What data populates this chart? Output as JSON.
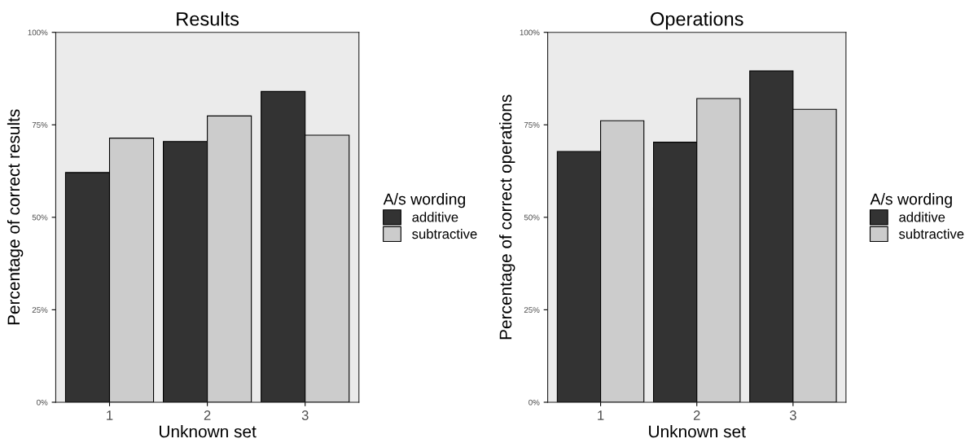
{
  "chart_data": [
    {
      "type": "bar",
      "title": "Results",
      "xlabel": "Unknown set",
      "ylabel": "Percentage of correct results",
      "legend_title": "A/s wording",
      "categories": [
        "1",
        "2",
        "3"
      ],
      "series": [
        {
          "name": "additive",
          "color": "#333333",
          "values": [
            62.1,
            70.5,
            84.0
          ]
        },
        {
          "name": "subtractive",
          "color": "#cccccc",
          "values": [
            71.4,
            77.4,
            72.2
          ]
        }
      ],
      "ylim": [
        0,
        100
      ],
      "yticks": [
        {
          "value": 0,
          "label": "0%"
        },
        {
          "value": 25,
          "label": "25%"
        },
        {
          "value": 50,
          "label": "50%"
        },
        {
          "value": 75,
          "label": "75%"
        },
        {
          "value": 100,
          "label": "100%"
        }
      ],
      "grid": false,
      "legend": "right"
    },
    {
      "type": "bar",
      "title": "Operations",
      "xlabel": "Unknown set",
      "ylabel": "Percentage of correct operations",
      "legend_title": "A/s wording",
      "categories": [
        "1",
        "2",
        "3"
      ],
      "series": [
        {
          "name": "additive",
          "color": "#333333",
          "values": [
            67.8,
            70.3,
            89.6
          ]
        },
        {
          "name": "subtractive",
          "color": "#cccccc",
          "values": [
            76.1,
            82.1,
            79.2
          ]
        }
      ],
      "ylim": [
        0,
        100
      ],
      "yticks": [
        {
          "value": 0,
          "label": "0%"
        },
        {
          "value": 25,
          "label": "25%"
        },
        {
          "value": 50,
          "label": "50%"
        },
        {
          "value": 75,
          "label": "75%"
        },
        {
          "value": 100,
          "label": "100%"
        }
      ],
      "grid": false,
      "legend": "right"
    }
  ]
}
